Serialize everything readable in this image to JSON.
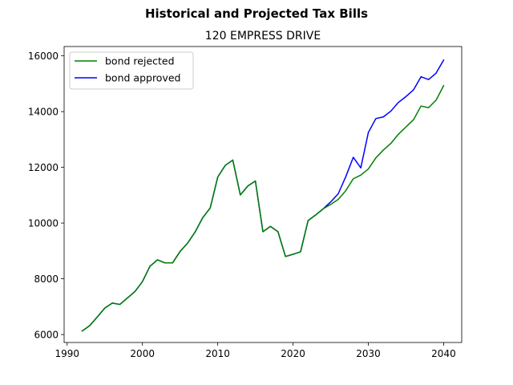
{
  "chart_data": {
    "type": "line",
    "suptitle": "Historical and Projected Tax Bills",
    "title": "120 EMPRESS DRIVE",
    "xlabel": "",
    "ylabel": "",
    "xlim": [
      1989.6,
      2042.4
    ],
    "ylim": [
      5715,
      16335
    ],
    "xticks": [
      1990,
      2000,
      2010,
      2020,
      2030,
      2040
    ],
    "yticks": [
      6000,
      8000,
      10000,
      12000,
      14000,
      16000
    ],
    "grid": false,
    "legend_position": "upper left",
    "series": [
      {
        "name": "bond rejected",
        "color": "#008000",
        "x": [
          1992,
          1993,
          1994,
          1995,
          1996,
          1997,
          1998,
          1999,
          2000,
          2001,
          2002,
          2003,
          2004,
          2005,
          2006,
          2007,
          2008,
          2009,
          2010,
          2011,
          2012,
          2013,
          2014,
          2015,
          2016,
          2017,
          2018,
          2019,
          2020,
          2021,
          2022,
          2023,
          2024,
          2025,
          2026,
          2027,
          2028,
          2029,
          2030,
          2031,
          2032,
          2033,
          2034,
          2035,
          2036,
          2037,
          2038,
          2039,
          2040
        ],
        "values": [
          6130,
          6320,
          6630,
          6950,
          7130,
          7080,
          7310,
          7540,
          7900,
          8450,
          8680,
          8570,
          8570,
          8980,
          9280,
          9680,
          10190,
          10540,
          11650,
          12070,
          12260,
          11010,
          11330,
          11510,
          9690,
          9880,
          9690,
          8800,
          8880,
          8970,
          10090,
          10290,
          10510,
          10670,
          10850,
          11160,
          11590,
          11720,
          11940,
          12340,
          12620,
          12860,
          13190,
          13450,
          13710,
          14200,
          14140,
          14410,
          14930
        ]
      },
      {
        "name": "bond approved",
        "color": "#0000ff",
        "x": [
          1992,
          1993,
          1994,
          1995,
          1996,
          1997,
          1998,
          1999,
          2000,
          2001,
          2002,
          2003,
          2004,
          2005,
          2006,
          2007,
          2008,
          2009,
          2010,
          2011,
          2012,
          2013,
          2014,
          2015,
          2016,
          2017,
          2018,
          2019,
          2020,
          2021,
          2022,
          2023,
          2024,
          2025,
          2026,
          2027,
          2028,
          2029,
          2030,
          2031,
          2032,
          2033,
          2034,
          2035,
          2036,
          2037,
          2038,
          2039,
          2040
        ],
        "values": [
          6130,
          6320,
          6630,
          6950,
          7130,
          7080,
          7310,
          7540,
          7900,
          8450,
          8680,
          8570,
          8570,
          8980,
          9280,
          9680,
          10190,
          10540,
          11650,
          12070,
          12260,
          11010,
          11330,
          11510,
          9690,
          9880,
          9690,
          8800,
          8880,
          8970,
          10090,
          10290,
          10510,
          10760,
          11050,
          11660,
          12360,
          11980,
          13250,
          13750,
          13810,
          14020,
          14330,
          14540,
          14780,
          15250,
          15150,
          15380,
          15850
        ]
      }
    ]
  }
}
